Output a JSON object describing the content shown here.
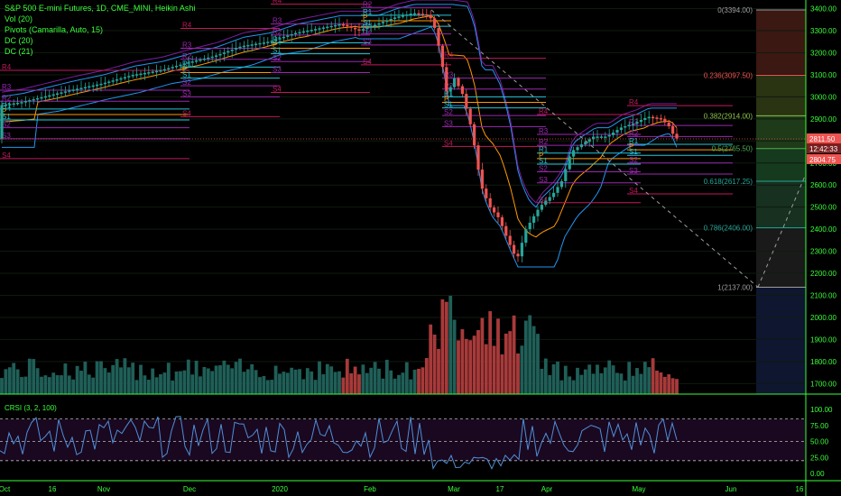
{
  "legend": {
    "title": "S&P 500 E-mini Futures, 1D, CME_MINI, Heikin Ashi",
    "vol": "Vol (20)",
    "pivots": "Pivots (Camarilla, Auto, 15)",
    "dc1": "DC (20)",
    "dc2": "DC (21)"
  },
  "colors": {
    "background": "#000000",
    "text_green": "#39ff39",
    "up": "#26a69a",
    "down": "#ef5350",
    "pivot_red": "#c2185b",
    "pivot_purple": "#9c27b0",
    "pivot_teal": "#26c6da",
    "dc_blue": "#2196f3",
    "fib_line": "#9e9e9e"
  },
  "price_ticks": [
    "3400.00",
    "3300.00",
    "3200.00",
    "3100.00",
    "3000.00",
    "2900.00",
    "2800.00",
    "2700.00",
    "2600.00",
    "2500.00",
    "2400.00",
    "2300.00",
    "2200.00",
    "2100.00",
    "2000.00",
    "1900.00",
    "1800.00",
    "1700.00"
  ],
  "price_badges": [
    "2811.50",
    "12:42:33",
    "2804.75"
  ],
  "crsi_ticks": [
    "100.00",
    "75.00",
    "50.00",
    "25.00",
    "0.00"
  ],
  "crsi_label": "CRSI (3, 2, 100)",
  "time_labels": [
    "Oct",
    "16",
    "Nov",
    "Dec",
    "2020",
    "Feb",
    "Mar",
    "17",
    "Apr",
    "May",
    "Jun",
    "16"
  ],
  "fib_labels": [
    "0(3394.00)",
    "0.236(3097.50)",
    "0.382(2914.00)",
    "0.5(2765.50)",
    "0.618(2617.25)",
    "0.786(2406.00)",
    "1(2137.00)"
  ],
  "pivot_labels": [
    "R4",
    "R3",
    "R2",
    "R1",
    "P",
    "S1",
    "S2",
    "S3",
    "S4"
  ],
  "chart_data": {
    "type": "candlestick",
    "series_style": "Heikin Ashi",
    "price_range": [
      1660,
      3420
    ],
    "fib_levels": [
      {
        "ratio": "0",
        "price": 3394.0
      },
      {
        "ratio": "0.236",
        "price": 3097.5
      },
      {
        "ratio": "0.382",
        "price": 2914.0
      },
      {
        "ratio": "0.5",
        "price": 2765.5
      },
      {
        "ratio": "0.618",
        "price": 2617.25
      },
      {
        "ratio": "0.786",
        "price": 2406.0
      },
      {
        "ratio": "1",
        "price": 2137.0
      }
    ],
    "last_close": 2811.5,
    "crsi_range": [
      0,
      100
    ],
    "crsi_bands": [
      20,
      85
    ]
  }
}
